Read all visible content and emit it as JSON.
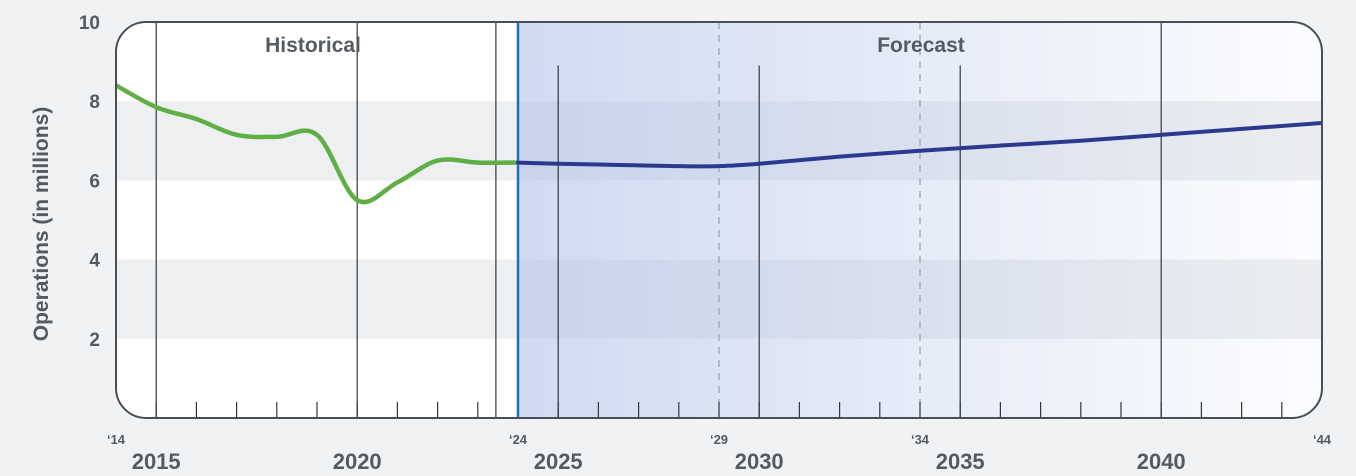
{
  "chart_data": {
    "type": "line",
    "ylabel": "Operations (in millions)",
    "xlim": [
      2014,
      2044
    ],
    "ylim": [
      0,
      10
    ],
    "y_ticks": [
      2,
      4,
      6,
      8,
      10
    ],
    "x_major_ticks": [
      {
        "value": 2015,
        "label": "2015"
      },
      {
        "value": 2020,
        "label": "2020"
      },
      {
        "value": 2025,
        "label": "2025"
      },
      {
        "value": 2030,
        "label": "2030"
      },
      {
        "value": 2035,
        "label": "2035"
      },
      {
        "value": 2040,
        "label": "2040"
      }
    ],
    "x_minor_labels": [
      {
        "value": 2014,
        "label": "‘14"
      },
      {
        "value": 2024,
        "label": "‘24"
      },
      {
        "value": 2029,
        "label": "‘29"
      },
      {
        "value": 2034,
        "label": "‘34"
      },
      {
        "value": 2044,
        "label": "‘44"
      }
    ],
    "regions": [
      {
        "label": "Historical",
        "from": 2014,
        "to": 2024
      },
      {
        "label": "Forecast",
        "from": 2024,
        "to": 2044
      }
    ],
    "grid": "alternating horizontal bands",
    "series": [
      {
        "color": "#5fae46",
        "x": [
          2014,
          2015,
          2016,
          2017,
          2018,
          2019,
          2020,
          2021,
          2022,
          2023,
          2024
        ],
        "y": [
          8.4,
          7.85,
          7.55,
          7.15,
          7.1,
          7.15,
          5.5,
          5.95,
          6.5,
          6.45,
          6.45
        ]
      },
      {
        "color": "#2b3a8e",
        "x": [
          2024,
          2025,
          2026,
          2027,
          2028,
          2029,
          2030,
          2032,
          2034,
          2036,
          2038,
          2040,
          2042,
          2044
        ],
        "y": [
          6.45,
          6.42,
          6.4,
          6.38,
          6.36,
          6.36,
          6.42,
          6.6,
          6.75,
          6.88,
          7.0,
          7.15,
          7.3,
          7.45
        ]
      }
    ]
  }
}
